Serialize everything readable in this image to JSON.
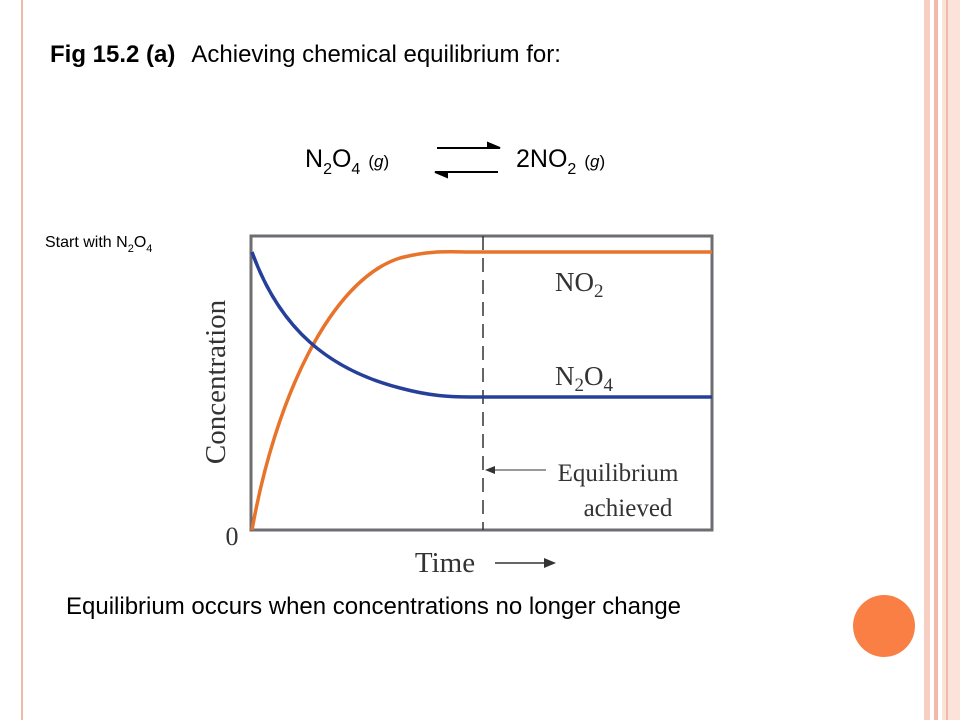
{
  "header": {
    "figure": "Fig 15.2 (a)",
    "title": "Achieving chemical equilibrium for:"
  },
  "equation": {
    "left": [
      "N",
      "2",
      "O",
      "4",
      "(",
      "g",
      ")"
    ],
    "right": [
      "2NO",
      "2",
      "(",
      "g",
      ")"
    ]
  },
  "figure": {
    "start_note": [
      "Start with N",
      "2",
      "O",
      "4"
    ],
    "y_label": "Concentration",
    "origin": "0",
    "x_label": "Time",
    "curve_labels": {
      "no2": [
        "NO",
        "2"
      ],
      "n2o4": [
        "N",
        "2",
        "O",
        "4"
      ]
    },
    "annotation": [
      "Equilibrium",
      "achieved"
    ]
  },
  "footer": "Equilibrium occurs when concentrations no longer change"
}
